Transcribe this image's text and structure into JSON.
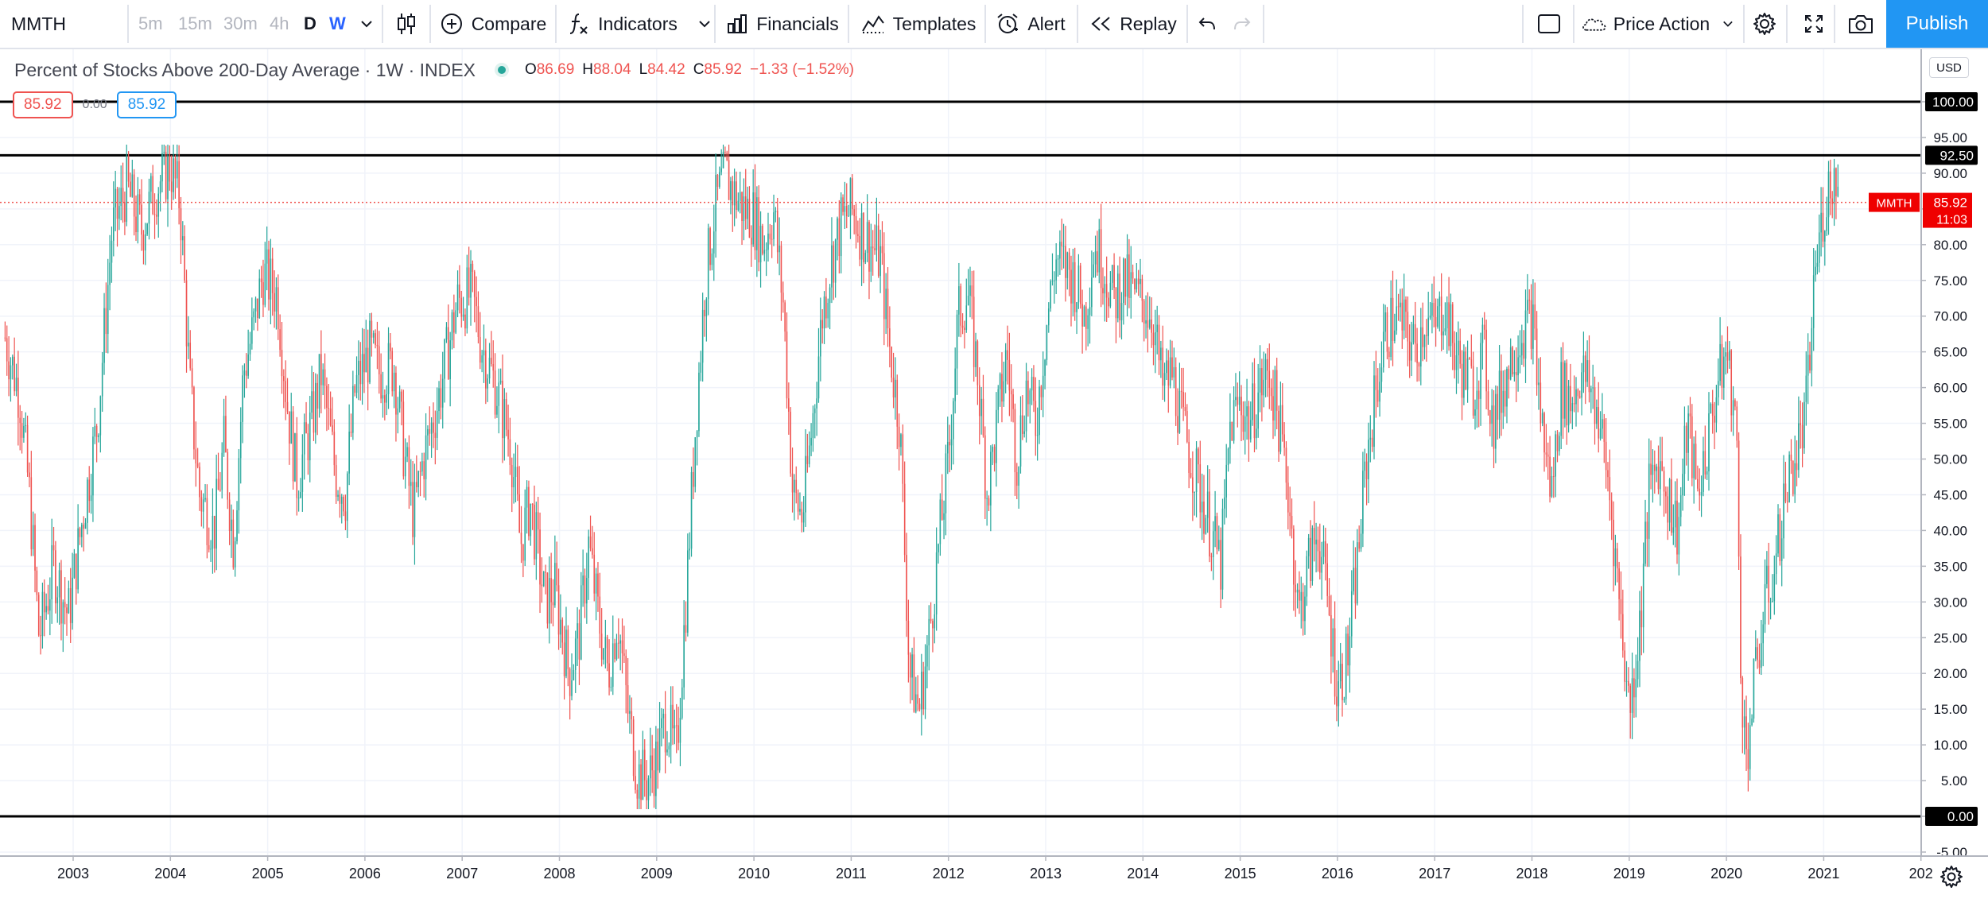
{
  "toolbar": {
    "symbol": "MMTH",
    "timeframes": [
      "5m",
      "15m",
      "30m",
      "4h",
      "D",
      "W"
    ],
    "compare_label": "Compare",
    "indicators_label": "Indicators",
    "financials_label": "Financials",
    "templates_label": "Templates",
    "alert_label": "Alert",
    "replay_label": "Replay",
    "price_action_label": "Price Action",
    "publish_label": "Publish"
  },
  "legend": {
    "title": "Percent of Stocks Above 200-Day Average · 1W · INDEX",
    "open_key": "O",
    "open": "86.69",
    "high_key": "H",
    "high": "88.04",
    "low_key": "L",
    "low": "84.42",
    "close_key": "C",
    "close": "85.92",
    "change": "−1.33 (−1.52%)",
    "bid_box": "85.92",
    "spread": "0.00",
    "ask_box": "85.92"
  },
  "price_scale": {
    "currency": "USD",
    "ticks": [
      "100.00",
      "95.00",
      "90.00",
      "85.00",
      "80.00",
      "75.00",
      "70.00",
      "65.00",
      "60.00",
      "55.00",
      "50.00",
      "45.00",
      "40.00",
      "35.00",
      "30.00",
      "25.00",
      "20.00",
      "15.00",
      "10.00",
      "5.00",
      "0.00",
      "-5.00"
    ],
    "horizontal_lines": [
      {
        "value": 100,
        "label": "100.00"
      },
      {
        "value": 92.5,
        "label": "92.50"
      },
      {
        "value": 0,
        "label": "0.00"
      }
    ],
    "last_price": {
      "symbol": "MMTH",
      "value": 85.92,
      "label": "85.92",
      "countdown": "11:03"
    }
  },
  "time_scale": {
    "years": [
      "2003",
      "2004",
      "2005",
      "2006",
      "2007",
      "2008",
      "2009",
      "2010",
      "2011",
      "2012",
      "2013",
      "2014",
      "2015",
      "2016",
      "2017",
      "2018",
      "2019",
      "2020",
      "2021",
      "202"
    ]
  },
  "colors": {
    "up": "#26a69a",
    "down": "#ef5350",
    "accent": "#2196f3",
    "grid": "#f0f3fa",
    "hline": "#000000",
    "last_price": "#ef0000"
  },
  "chart_data": {
    "type": "candlestick",
    "title": "Percent of Stocks Above 200-Day Average · 1W · INDEX",
    "x_start": "2002-05",
    "x_end": "2021-04",
    "ylim": [
      -7.5,
      108
    ],
    "series": [
      {
        "name": "MMTH",
        "weekly_close": [
          [
            2002.3,
            67
          ],
          [
            2002.45,
            59
          ],
          [
            2002.55,
            45
          ],
          [
            2002.65,
            25
          ],
          [
            2002.8,
            35
          ],
          [
            2002.95,
            28
          ],
          [
            2003.1,
            42
          ],
          [
            2003.25,
            55
          ],
          [
            2003.4,
            82
          ],
          [
            2003.55,
            88
          ],
          [
            2003.7,
            82
          ],
          [
            2003.85,
            88
          ],
          [
            2004.0,
            91
          ],
          [
            2004.1,
            86
          ],
          [
            2004.2,
            60
          ],
          [
            2004.3,
            45
          ],
          [
            2004.45,
            40
          ],
          [
            2004.55,
            52
          ],
          [
            2004.65,
            38
          ],
          [
            2004.75,
            62
          ],
          [
            2004.85,
            68
          ],
          [
            2004.95,
            76
          ],
          [
            2005.1,
            73
          ],
          [
            2005.2,
            58
          ],
          [
            2005.3,
            47
          ],
          [
            2005.45,
            55
          ],
          [
            2005.55,
            62
          ],
          [
            2005.7,
            48
          ],
          [
            2005.8,
            45
          ],
          [
            2005.9,
            60
          ],
          [
            2006.05,
            65
          ],
          [
            2006.15,
            62
          ],
          [
            2006.3,
            63
          ],
          [
            2006.4,
            51
          ],
          [
            2006.5,
            42
          ],
          [
            2006.6,
            50
          ],
          [
            2006.75,
            58
          ],
          [
            2006.85,
            65
          ],
          [
            2006.95,
            72
          ],
          [
            2007.1,
            73
          ],
          [
            2007.2,
            66
          ],
          [
            2007.35,
            60
          ],
          [
            2007.5,
            52
          ],
          [
            2007.6,
            38
          ],
          [
            2007.7,
            44
          ],
          [
            2007.85,
            30
          ],
          [
            2007.95,
            32
          ],
          [
            2008.1,
            20
          ],
          [
            2008.2,
            25
          ],
          [
            2008.3,
            38
          ],
          [
            2008.4,
            28
          ],
          [
            2008.5,
            20
          ],
          [
            2008.6,
            28
          ],
          [
            2008.7,
            15
          ],
          [
            2008.8,
            6
          ],
          [
            2008.9,
            5
          ],
          [
            2009.0,
            8
          ],
          [
            2009.1,
            14
          ],
          [
            2009.2,
            8
          ],
          [
            2009.3,
            30
          ],
          [
            2009.4,
            55
          ],
          [
            2009.5,
            75
          ],
          [
            2009.6,
            85
          ],
          [
            2009.7,
            90
          ],
          [
            2009.8,
            87
          ],
          [
            2009.9,
            85
          ],
          [
            2010.0,
            84
          ],
          [
            2010.1,
            80
          ],
          [
            2010.2,
            85
          ],
          [
            2010.3,
            72
          ],
          [
            2010.4,
            45
          ],
          [
            2010.5,
            42
          ],
          [
            2010.6,
            55
          ],
          [
            2010.7,
            70
          ],
          [
            2010.8,
            78
          ],
          [
            2010.9,
            83
          ],
          [
            2011.0,
            85
          ],
          [
            2011.1,
            82
          ],
          [
            2011.2,
            80
          ],
          [
            2011.3,
            78
          ],
          [
            2011.4,
            65
          ],
          [
            2011.5,
            55
          ],
          [
            2011.6,
            20
          ],
          [
            2011.7,
            15
          ],
          [
            2011.8,
            25
          ],
          [
            2011.9,
            38
          ],
          [
            2012.0,
            50
          ],
          [
            2012.1,
            70
          ],
          [
            2012.2,
            73
          ],
          [
            2012.3,
            62
          ],
          [
            2012.4,
            45
          ],
          [
            2012.5,
            55
          ],
          [
            2012.6,
            65
          ],
          [
            2012.7,
            50
          ],
          [
            2012.8,
            60
          ],
          [
            2012.9,
            55
          ],
          [
            2013.0,
            68
          ],
          [
            2013.1,
            78
          ],
          [
            2013.2,
            77
          ],
          [
            2013.3,
            75
          ],
          [
            2013.4,
            70
          ],
          [
            2013.5,
            80
          ],
          [
            2013.6,
            77
          ],
          [
            2013.7,
            72
          ],
          [
            2013.8,
            75
          ],
          [
            2013.9,
            73
          ],
          [
            2014.0,
            72
          ],
          [
            2014.1,
            70
          ],
          [
            2014.2,
            60
          ],
          [
            2014.3,
            62
          ],
          [
            2014.4,
            55
          ],
          [
            2014.5,
            50
          ],
          [
            2014.6,
            45
          ],
          [
            2014.7,
            40
          ],
          [
            2014.8,
            35
          ],
          [
            2014.9,
            55
          ],
          [
            2015.0,
            58
          ],
          [
            2015.1,
            55
          ],
          [
            2015.2,
            60
          ],
          [
            2015.3,
            62
          ],
          [
            2015.4,
            55
          ],
          [
            2015.5,
            45
          ],
          [
            2015.6,
            28
          ],
          [
            2015.7,
            35
          ],
          [
            2015.8,
            40
          ],
          [
            2015.9,
            30
          ],
          [
            2016.0,
            18
          ],
          [
            2016.1,
            22
          ],
          [
            2016.2,
            35
          ],
          [
            2016.3,
            50
          ],
          [
            2016.4,
            60
          ],
          [
            2016.5,
            68
          ],
          [
            2016.6,
            70
          ],
          [
            2016.7,
            68
          ],
          [
            2016.8,
            65
          ],
          [
            2016.9,
            70
          ],
          [
            2017.0,
            68
          ],
          [
            2017.1,
            72
          ],
          [
            2017.2,
            65
          ],
          [
            2017.3,
            62
          ],
          [
            2017.4,
            60
          ],
          [
            2017.5,
            65
          ],
          [
            2017.6,
            55
          ],
          [
            2017.7,
            60
          ],
          [
            2017.8,
            65
          ],
          [
            2017.9,
            68
          ],
          [
            2018.0,
            70
          ],
          [
            2018.1,
            55
          ],
          [
            2018.2,
            45
          ],
          [
            2018.3,
            60
          ],
          [
            2018.4,
            58
          ],
          [
            2018.5,
            62
          ],
          [
            2018.6,
            60
          ],
          [
            2018.7,
            55
          ],
          [
            2018.8,
            45
          ],
          [
            2018.9,
            30
          ],
          [
            2019.0,
            15
          ],
          [
            2019.1,
            25
          ],
          [
            2019.2,
            45
          ],
          [
            2019.3,
            50
          ],
          [
            2019.4,
            45
          ],
          [
            2019.5,
            40
          ],
          [
            2019.6,
            55
          ],
          [
            2019.7,
            45
          ],
          [
            2019.8,
            52
          ],
          [
            2019.9,
            60
          ],
          [
            2020.0,
            65
          ],
          [
            2020.1,
            55
          ],
          [
            2020.15,
            20
          ],
          [
            2020.2,
            8
          ],
          [
            2020.3,
            20
          ],
          [
            2020.4,
            30
          ],
          [
            2020.5,
            35
          ],
          [
            2020.6,
            45
          ],
          [
            2020.7,
            50
          ],
          [
            2020.8,
            55
          ],
          [
            2020.85,
            62
          ],
          [
            2020.9,
            75
          ],
          [
            2021.0,
            85
          ],
          [
            2021.05,
            88
          ],
          [
            2021.1,
            90
          ],
          [
            2021.15,
            85.92
          ]
        ]
      }
    ]
  }
}
